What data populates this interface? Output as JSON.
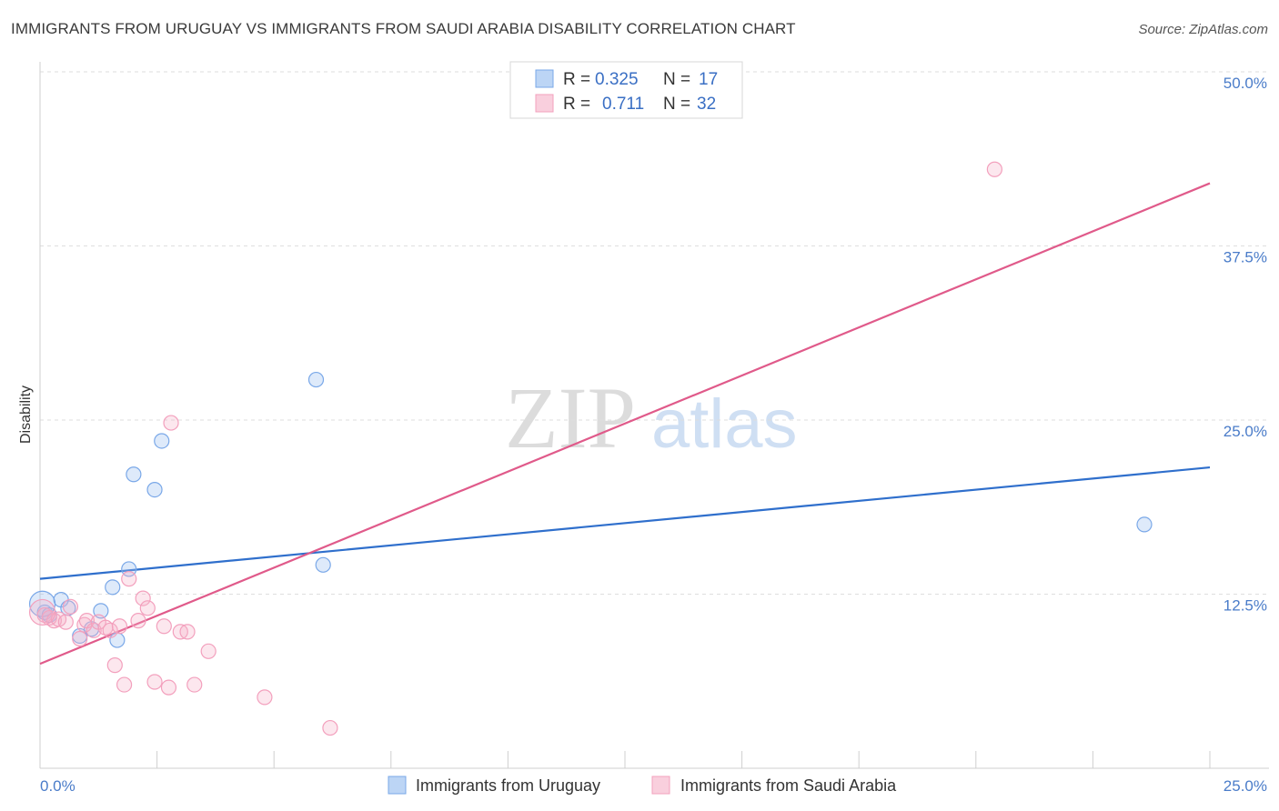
{
  "header": {
    "title": "IMMIGRANTS FROM URUGUAY VS IMMIGRANTS FROM SAUDI ARABIA DISABILITY CORRELATION CHART",
    "source": "Source: ZipAtlas.com"
  },
  "watermark": {
    "zip": "ZIP",
    "atlas": "atlas"
  },
  "chart_data": {
    "type": "scatter",
    "title": "IMMIGRANTS FROM URUGUAY VS IMMIGRANTS FROM SAUDI ARABIA DISABILITY CORRELATION CHART",
    "xlabel": "",
    "ylabel": "Disability",
    "xlim": [
      0,
      25
    ],
    "ylim": [
      0,
      50
    ],
    "x_tick_labels": {
      "min": "0.0%",
      "max": "25.0%"
    },
    "y_ticks": [
      {
        "value": 12.5,
        "label": "12.5%"
      },
      {
        "value": 25.0,
        "label": "25.0%"
      },
      {
        "value": 37.5,
        "label": "37.5%"
      },
      {
        "value": 50.0,
        "label": "50.0%"
      }
    ],
    "grid": true,
    "legend_position": "top-center",
    "series": [
      {
        "name": "Immigrants from Uruguay",
        "color": "#7aa8e8",
        "line_color": "#2f6fcc",
        "stats": {
          "r_label": "R =",
          "r_value": "0.325",
          "n_label": "N =",
          "n_value": "17"
        },
        "points": [
          {
            "x": 0.1,
            "y": 11.2
          },
          {
            "x": 0.2,
            "y": 11.0
          },
          {
            "x": 0.45,
            "y": 12.1
          },
          {
            "x": 0.6,
            "y": 11.5
          },
          {
            "x": 0.85,
            "y": 9.5
          },
          {
            "x": 1.1,
            "y": 10.0
          },
          {
            "x": 1.3,
            "y": 11.3
          },
          {
            "x": 1.55,
            "y": 13.0
          },
          {
            "x": 1.65,
            "y": 9.2
          },
          {
            "x": 1.9,
            "y": 14.3
          },
          {
            "x": 2.0,
            "y": 21.1
          },
          {
            "x": 2.45,
            "y": 20.0
          },
          {
            "x": 2.6,
            "y": 23.5
          },
          {
            "x": 5.9,
            "y": 27.9
          },
          {
            "x": 6.05,
            "y": 14.6
          },
          {
            "x": 23.6,
            "y": 17.5
          },
          {
            "x": 0.05,
            "y": 11.8
          }
        ],
        "trend": {
          "x1": 0,
          "y1": 13.6,
          "x2": 25,
          "y2": 21.6
        }
      },
      {
        "name": "Immigrants from Saudi Arabia",
        "color": "#f3a0bd",
        "line_color": "#e05a8a",
        "stats": {
          "r_label": "R =",
          "r_value": "0.711",
          "n_label": "N =",
          "n_value": "32"
        },
        "points": [
          {
            "x": 0.1,
            "y": 11.0
          },
          {
            "x": 0.2,
            "y": 10.8
          },
          {
            "x": 0.3,
            "y": 10.6
          },
          {
            "x": 0.4,
            "y": 10.7
          },
          {
            "x": 0.55,
            "y": 10.5
          },
          {
            "x": 0.65,
            "y": 11.6
          },
          {
            "x": 0.85,
            "y": 9.3
          },
          {
            "x": 0.95,
            "y": 10.3
          },
          {
            "x": 1.0,
            "y": 10.6
          },
          {
            "x": 1.15,
            "y": 9.9
          },
          {
            "x": 1.25,
            "y": 10.5
          },
          {
            "x": 1.4,
            "y": 10.1
          },
          {
            "x": 1.5,
            "y": 9.9
          },
          {
            "x": 1.6,
            "y": 7.4
          },
          {
            "x": 1.7,
            "y": 10.2
          },
          {
            "x": 1.8,
            "y": 6.0
          },
          {
            "x": 1.9,
            "y": 13.6
          },
          {
            "x": 2.1,
            "y": 10.6
          },
          {
            "x": 2.2,
            "y": 12.2
          },
          {
            "x": 2.3,
            "y": 11.5
          },
          {
            "x": 2.45,
            "y": 6.2
          },
          {
            "x": 2.65,
            "y": 10.2
          },
          {
            "x": 2.75,
            "y": 5.8
          },
          {
            "x": 2.8,
            "y": 24.8
          },
          {
            "x": 3.0,
            "y": 9.8
          },
          {
            "x": 3.15,
            "y": 9.8
          },
          {
            "x": 3.3,
            "y": 6.0
          },
          {
            "x": 3.6,
            "y": 8.4
          },
          {
            "x": 4.8,
            "y": 5.1
          },
          {
            "x": 6.2,
            "y": 2.9
          },
          {
            "x": 20.4,
            "y": 43.0
          },
          {
            "x": 0.05,
            "y": 11.2
          }
        ],
        "trend": {
          "x1": 0,
          "y1": 7.5,
          "x2": 25,
          "y2": 42.0
        }
      }
    ]
  }
}
